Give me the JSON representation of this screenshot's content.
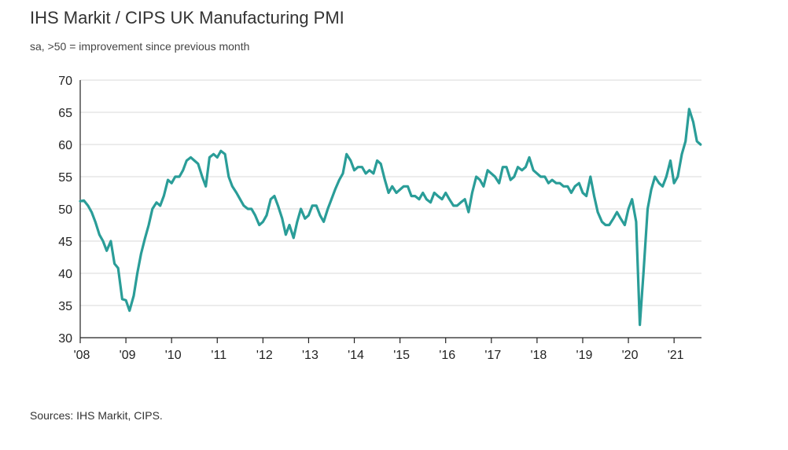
{
  "title": "IHS Markit / CIPS UK Manufacturing PMI",
  "subtitle": "sa, >50 = improvement since previous month",
  "source": "Sources: IHS Markit, CIPS.",
  "colors": {
    "line": "#2a9d98",
    "grid": "#d8d8d8",
    "axis": "#222222"
  },
  "chart_data": {
    "type": "line",
    "title": "IHS Markit / CIPS UK Manufacturing PMI",
    "subtitle": "sa, >50 = improvement since previous month",
    "xlabel": "",
    "ylabel": "",
    "ylim": [
      30,
      70
    ],
    "yticks": [
      30,
      35,
      40,
      45,
      50,
      55,
      60,
      65,
      70
    ],
    "xtick_labels": [
      "'08",
      "'09",
      "'10",
      "'11",
      "'12",
      "'13",
      "'14",
      "'15",
      "'16",
      "'17",
      "'18",
      "'19",
      "'20",
      "'21"
    ],
    "grid": true,
    "legend": "none",
    "series": [
      {
        "points": [
          [
            2008.0,
            51.2
          ],
          [
            2008.08,
            51.3
          ],
          [
            2008.17,
            50.5
          ],
          [
            2008.25,
            49.5
          ],
          [
            2008.33,
            48.0
          ],
          [
            2008.42,
            46.0
          ],
          [
            2008.5,
            45.0
          ],
          [
            2008.58,
            43.5
          ],
          [
            2008.67,
            45.0
          ],
          [
            2008.75,
            41.5
          ],
          [
            2008.83,
            40.8
          ],
          [
            2008.92,
            36.0
          ],
          [
            2009.0,
            35.8
          ],
          [
            2009.08,
            34.2
          ],
          [
            2009.17,
            36.5
          ],
          [
            2009.25,
            40.0
          ],
          [
            2009.33,
            43.0
          ],
          [
            2009.42,
            45.5
          ],
          [
            2009.5,
            47.5
          ],
          [
            2009.58,
            50.0
          ],
          [
            2009.67,
            51.0
          ],
          [
            2009.75,
            50.5
          ],
          [
            2009.83,
            52.0
          ],
          [
            2009.92,
            54.5
          ],
          [
            2010.0,
            54.0
          ],
          [
            2010.08,
            55.0
          ],
          [
            2010.17,
            55.0
          ],
          [
            2010.25,
            56.0
          ],
          [
            2010.33,
            57.5
          ],
          [
            2010.42,
            58.0
          ],
          [
            2010.5,
            57.5
          ],
          [
            2010.58,
            57.0
          ],
          [
            2010.67,
            55.0
          ],
          [
            2010.75,
            53.5
          ],
          [
            2010.83,
            58.0
          ],
          [
            2010.92,
            58.5
          ],
          [
            2011.0,
            58.0
          ],
          [
            2011.08,
            59.0
          ],
          [
            2011.17,
            58.5
          ],
          [
            2011.25,
            55.0
          ],
          [
            2011.33,
            53.5
          ],
          [
            2011.42,
            52.5
          ],
          [
            2011.5,
            51.5
          ],
          [
            2011.58,
            50.5
          ],
          [
            2011.67,
            50.0
          ],
          [
            2011.75,
            50.0
          ],
          [
            2011.83,
            49.0
          ],
          [
            2011.92,
            47.5
          ],
          [
            2012.0,
            48.0
          ],
          [
            2012.08,
            49.0
          ],
          [
            2012.17,
            51.5
          ],
          [
            2012.25,
            52.0
          ],
          [
            2012.33,
            50.5
          ],
          [
            2012.42,
            48.5
          ],
          [
            2012.5,
            46.0
          ],
          [
            2012.58,
            47.5
          ],
          [
            2012.67,
            45.5
          ],
          [
            2012.75,
            48.0
          ],
          [
            2012.83,
            50.0
          ],
          [
            2012.92,
            48.5
          ],
          [
            2013.0,
            49.0
          ],
          [
            2013.08,
            50.5
          ],
          [
            2013.17,
            50.5
          ],
          [
            2013.25,
            49.0
          ],
          [
            2013.33,
            48.0
          ],
          [
            2013.42,
            50.0
          ],
          [
            2013.5,
            51.5
          ],
          [
            2013.58,
            53.0
          ],
          [
            2013.67,
            54.5
          ],
          [
            2013.75,
            55.5
          ],
          [
            2013.83,
            58.5
          ],
          [
            2013.92,
            57.5
          ],
          [
            2014.0,
            56.0
          ],
          [
            2014.08,
            56.5
          ],
          [
            2014.17,
            56.5
          ],
          [
            2014.25,
            55.5
          ],
          [
            2014.33,
            56.0
          ],
          [
            2014.42,
            55.5
          ],
          [
            2014.5,
            57.5
          ],
          [
            2014.58,
            57.0
          ],
          [
            2014.67,
            54.5
          ],
          [
            2014.75,
            52.5
          ],
          [
            2014.83,
            53.5
          ],
          [
            2014.92,
            52.5
          ],
          [
            2015.0,
            53.0
          ],
          [
            2015.08,
            53.5
          ],
          [
            2015.17,
            53.5
          ],
          [
            2015.25,
            52.0
          ],
          [
            2015.33,
            52.0
          ],
          [
            2015.42,
            51.5
          ],
          [
            2015.5,
            52.5
          ],
          [
            2015.58,
            51.5
          ],
          [
            2015.67,
            51.0
          ],
          [
            2015.75,
            52.5
          ],
          [
            2015.83,
            52.0
          ],
          [
            2015.92,
            51.5
          ],
          [
            2016.0,
            52.5
          ],
          [
            2016.08,
            51.5
          ],
          [
            2016.17,
            50.5
          ],
          [
            2016.25,
            50.5
          ],
          [
            2016.33,
            51.0
          ],
          [
            2016.42,
            51.5
          ],
          [
            2016.5,
            49.5
          ],
          [
            2016.58,
            52.5
          ],
          [
            2016.67,
            55.0
          ],
          [
            2016.75,
            54.5
          ],
          [
            2016.83,
            53.5
          ],
          [
            2016.92,
            56.0
          ],
          [
            2017.0,
            55.5
          ],
          [
            2017.08,
            55.0
          ],
          [
            2017.17,
            54.0
          ],
          [
            2017.25,
            56.5
          ],
          [
            2017.33,
            56.5
          ],
          [
            2017.42,
            54.5
          ],
          [
            2017.5,
            55.0
          ],
          [
            2017.58,
            56.5
          ],
          [
            2017.67,
            56.0
          ],
          [
            2017.75,
            56.5
          ],
          [
            2017.83,
            58.0
          ],
          [
            2017.92,
            56.0
          ],
          [
            2018.0,
            55.5
          ],
          [
            2018.08,
            55.0
          ],
          [
            2018.17,
            55.0
          ],
          [
            2018.25,
            54.0
          ],
          [
            2018.33,
            54.5
          ],
          [
            2018.42,
            54.0
          ],
          [
            2018.5,
            54.0
          ],
          [
            2018.58,
            53.5
          ],
          [
            2018.67,
            53.5
          ],
          [
            2018.75,
            52.5
          ],
          [
            2018.83,
            53.5
          ],
          [
            2018.92,
            54.0
          ],
          [
            2019.0,
            52.5
          ],
          [
            2019.08,
            52.0
          ],
          [
            2019.17,
            55.0
          ],
          [
            2019.25,
            52.0
          ],
          [
            2019.33,
            49.5
          ],
          [
            2019.42,
            48.0
          ],
          [
            2019.5,
            47.5
          ],
          [
            2019.58,
            47.5
          ],
          [
            2019.67,
            48.5
          ],
          [
            2019.75,
            49.5
          ],
          [
            2019.83,
            48.5
          ],
          [
            2019.92,
            47.5
          ],
          [
            2020.0,
            50.0
          ],
          [
            2020.08,
            51.5
          ],
          [
            2020.17,
            48.0
          ],
          [
            2020.25,
            32.0
          ],
          [
            2020.33,
            40.0
          ],
          [
            2020.42,
            50.0
          ],
          [
            2020.5,
            53.0
          ],
          [
            2020.58,
            55.0
          ],
          [
            2020.67,
            54.0
          ],
          [
            2020.75,
            53.5
          ],
          [
            2020.83,
            55.0
          ],
          [
            2020.92,
            57.5
          ],
          [
            2021.0,
            54.0
          ],
          [
            2021.08,
            55.0
          ],
          [
            2021.17,
            58.5
          ],
          [
            2021.25,
            60.5
          ],
          [
            2021.33,
            65.5
          ],
          [
            2021.42,
            63.5
          ],
          [
            2021.5,
            60.5
          ],
          [
            2021.58,
            60.0
          ]
        ]
      }
    ]
  }
}
